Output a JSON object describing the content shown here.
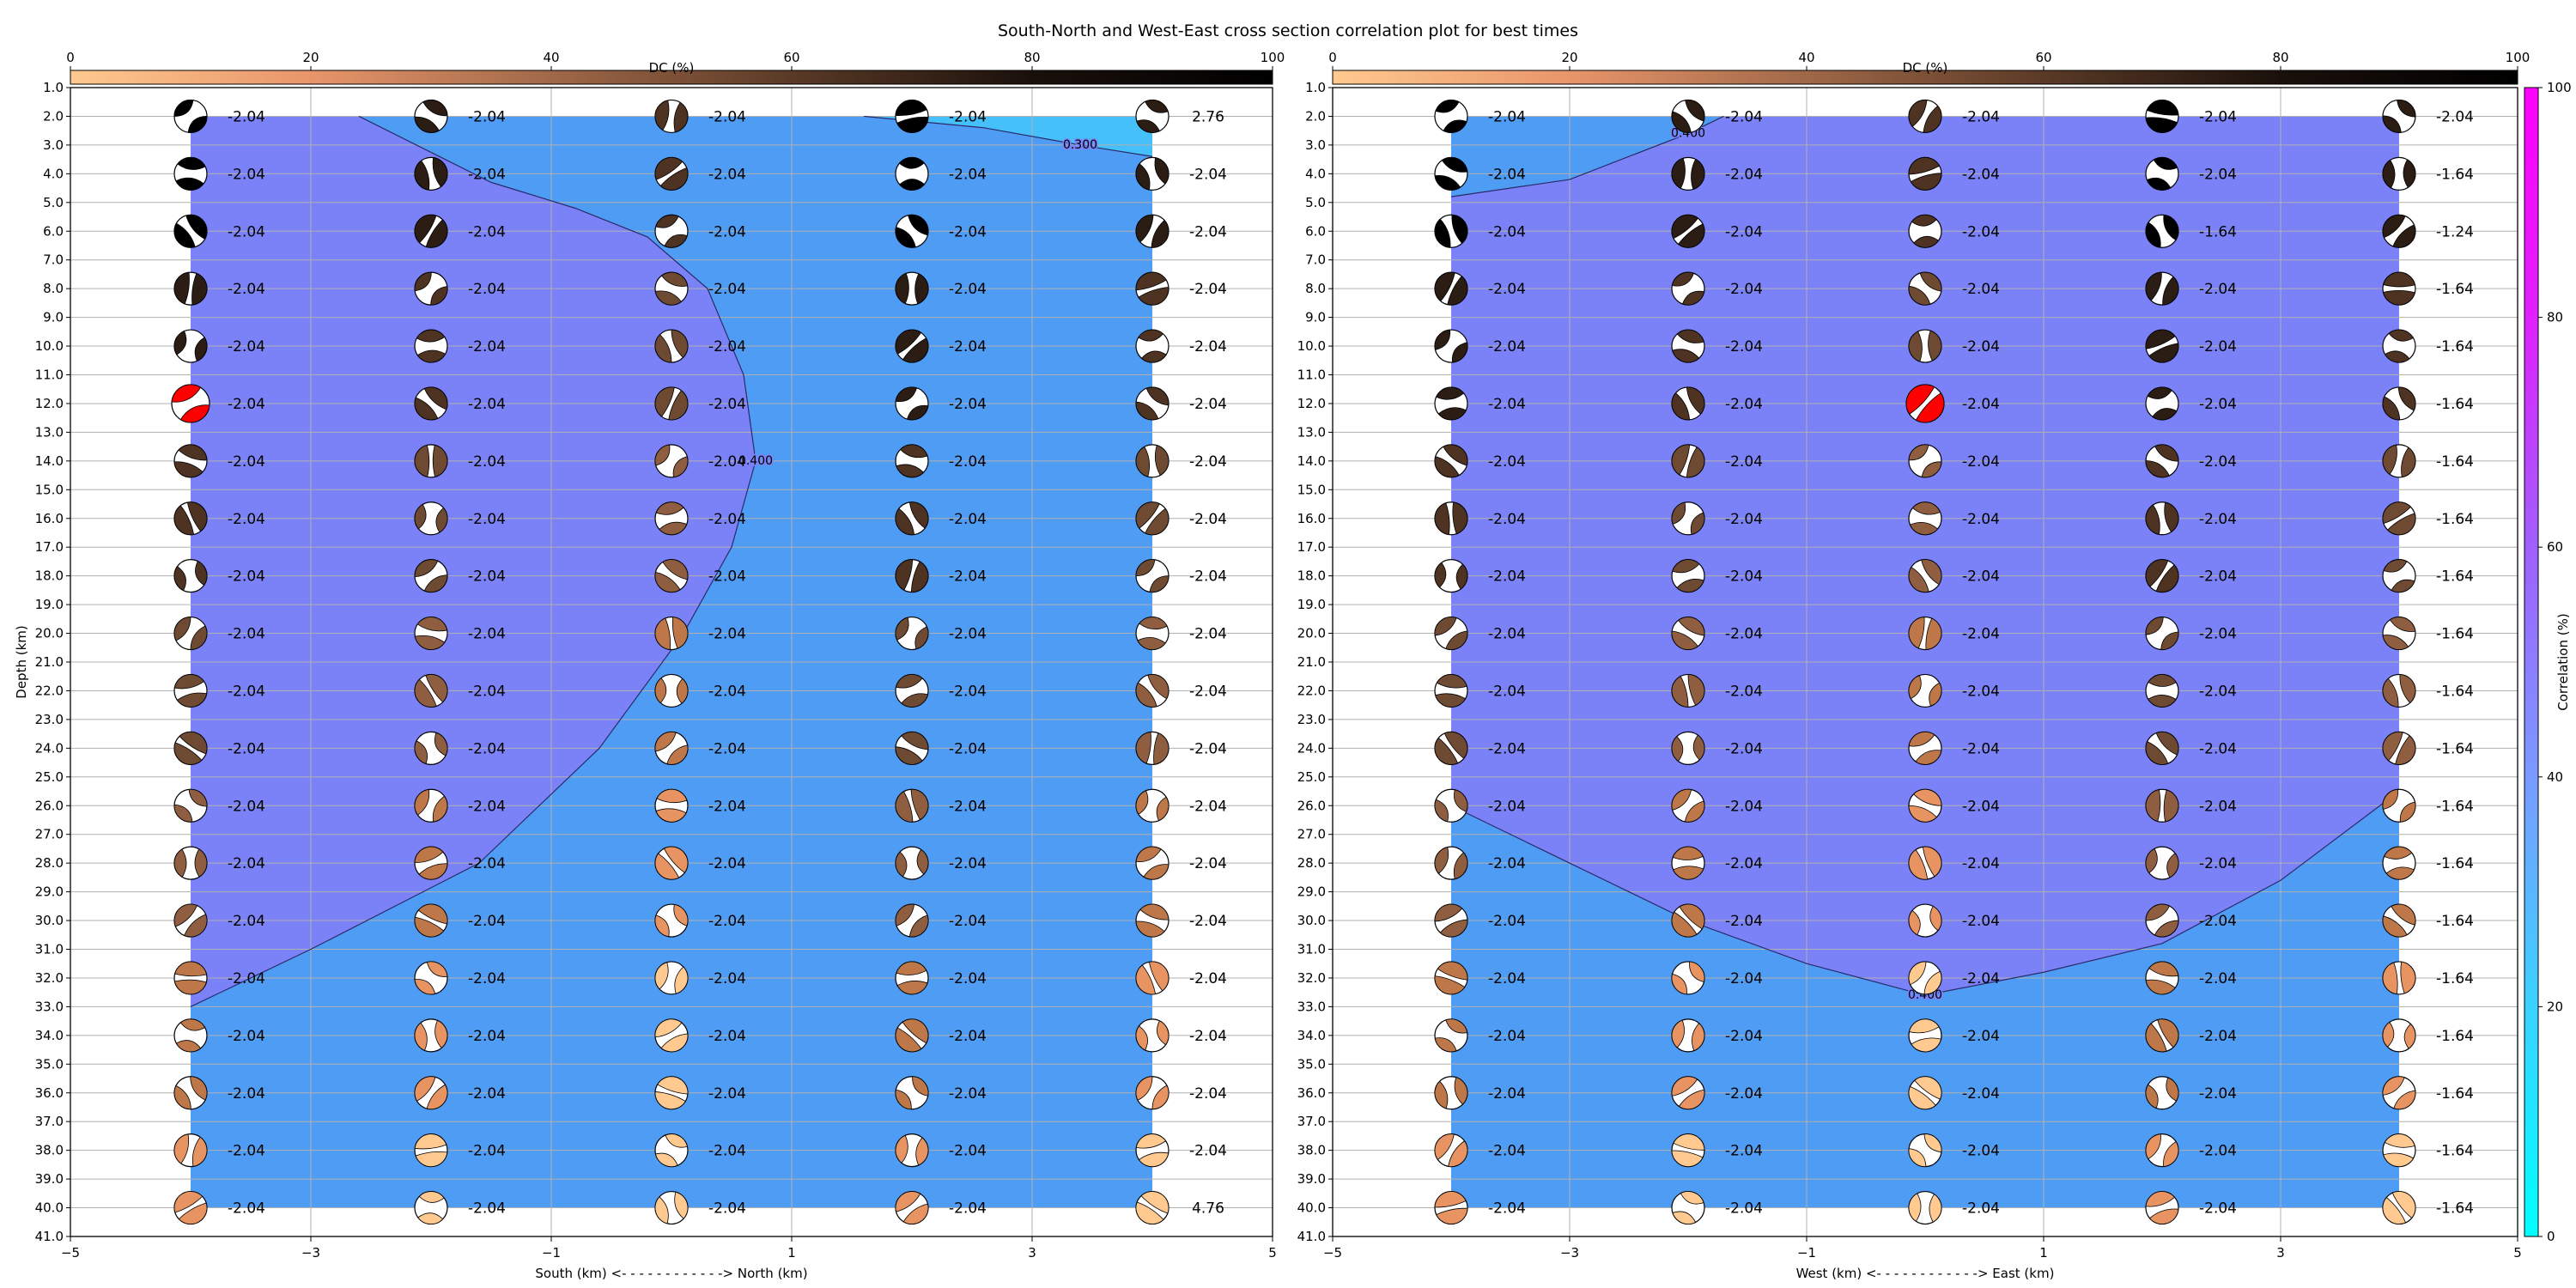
{
  "title": "South-North and West-East cross section correlation plot for best times",
  "colors": {
    "grid": "#b0b0b0",
    "ball_outline": "#000000",
    "highlight": "#ff0000"
  },
  "dc_colorbar": {
    "label": "DC (%)",
    "ticks": [
      "0",
      "20",
      "40",
      "60",
      "80",
      "100"
    ],
    "stops": [
      "#ffc98f",
      "#e8956a",
      "#a06848",
      "#5a3a26",
      "#1a100b",
      "#000000"
    ]
  },
  "corr_colorbar": {
    "label": "Correlation (%)",
    "ticks": [
      "0",
      "20",
      "40",
      "60",
      "80",
      "100"
    ],
    "stops": [
      "#00ffff",
      "#3ad2ff",
      "#7a9bff",
      "#a060ff",
      "#e020ff",
      "#ff00ff"
    ]
  },
  "depth_ticks": [
    "1.0",
    "2.0",
    "3.0",
    "4.0",
    "5.0",
    "6.0",
    "7.0",
    "8.0",
    "9.0",
    "10.0",
    "11.0",
    "12.0",
    "13.0",
    "14.0",
    "15.0",
    "16.0",
    "17.0",
    "18.0",
    "19.0",
    "20.0",
    "21.0",
    "22.0",
    "23.0",
    "24.0",
    "25.0",
    "26.0",
    "27.0",
    "28.0",
    "29.0",
    "30.0",
    "31.0",
    "32.0",
    "33.0",
    "34.0",
    "35.0",
    "36.0",
    "37.0",
    "38.0",
    "39.0",
    "40.0",
    "41.0"
  ],
  "chart_data": [
    {
      "type": "heatmap",
      "xlabel": "South (km) <- - - - - - - - - - - -> North (km)",
      "ylabel": "Depth (km)",
      "xticks": [
        "−5",
        "−3",
        "−1",
        "1",
        "3",
        "5"
      ],
      "xlim": [
        -5,
        5
      ],
      "ylim": [
        41,
        1
      ],
      "x": [
        -4,
        -2,
        0,
        2,
        4
      ],
      "depths": [
        2,
        4,
        6,
        8,
        10,
        12,
        14,
        16,
        18,
        20,
        22,
        24,
        26,
        28,
        30,
        32,
        34,
        36,
        38,
        40
      ],
      "contours": [
        {
          "label": "0.400",
          "points": [
            [
              -2.6,
              2
            ],
            [
              -1.5,
              4.3
            ],
            [
              -0.8,
              5.2
            ],
            [
              -0.2,
              6.2
            ],
            [
              0.3,
              8
            ],
            [
              0.6,
              11
            ],
            [
              0.7,
              14
            ],
            [
              0.5,
              17
            ],
            [
              0.1,
              20
            ],
            [
              -0.6,
              24
            ],
            [
              -1.6,
              28
            ],
            [
              -3,
              31
            ],
            [
              -4,
              33
            ]
          ]
        },
        {
          "label": "0.300",
          "points": [
            [
              1.6,
              2
            ],
            [
              2.6,
              2.4
            ],
            [
              3.4,
              3
            ],
            [
              4,
              3.4
            ]
          ]
        }
      ],
      "highlight": {
        "x": -4,
        "depth": 12
      },
      "values": [
        [
          "-2.04",
          "-2.04",
          "-2.04",
          "-2.04",
          "2.76"
        ],
        [
          "-2.04",
          "-2.04",
          "-2.04",
          "-2.04",
          "-2.04"
        ],
        [
          "-2.04",
          "-2.04",
          "-2.04",
          "-2.04",
          "-2.04"
        ],
        [
          "-2.04",
          "-2.04",
          "-2.04",
          "-2.04",
          "-2.04"
        ],
        [
          "-2.04",
          "-2.04",
          "-2.04",
          "-2.04",
          "-2.04"
        ],
        [
          "-2.04",
          "-2.04",
          "-2.04",
          "-2.04",
          "-2.04"
        ],
        [
          "-2.04",
          "-2.04",
          "-2.04",
          "-2.04",
          "-2.04"
        ],
        [
          "-2.04",
          "-2.04",
          "-2.04",
          "-2.04",
          "-2.04"
        ],
        [
          "-2.04",
          "-2.04",
          "-2.04",
          "-2.04",
          "-2.04"
        ],
        [
          "-2.04",
          "-2.04",
          "-2.04",
          "-2.04",
          "-2.04"
        ],
        [
          "-2.04",
          "-2.04",
          "-2.04",
          "-2.04",
          "-2.04"
        ],
        [
          "-2.04",
          "-2.04",
          "-2.04",
          "-2.04",
          "-2.04"
        ],
        [
          "-2.04",
          "-2.04",
          "-2.04",
          "-2.04",
          "-2.04"
        ],
        [
          "-2.04",
          "-2.04",
          "-2.04",
          "-2.04",
          "-2.04"
        ],
        [
          "-2.04",
          "-2.04",
          "-2.04",
          "-2.04",
          "-2.04"
        ],
        [
          "-2.04",
          "-2.04",
          "-2.04",
          "-2.04",
          "-2.04"
        ],
        [
          "-2.04",
          "-2.04",
          "-2.04",
          "-2.04",
          "-2.04"
        ],
        [
          "-2.04",
          "-2.04",
          "-2.04",
          "-2.04",
          "-2.04"
        ],
        [
          "-2.04",
          "-2.04",
          "-2.04",
          "-2.04",
          "-2.04"
        ],
        [
          "-2.04",
          "-2.04",
          "-2.04",
          "-2.04",
          "4.76"
        ]
      ]
    },
    {
      "type": "heatmap",
      "xlabel": "West (km) <- - - - - - - - - - - -> East (km)",
      "ylabel": "",
      "xticks": [
        "−5",
        "−3",
        "−1",
        "1",
        "3",
        "5"
      ],
      "xlim": [
        -5,
        5
      ],
      "ylim": [
        41,
        1
      ],
      "x": [
        -4,
        -2,
        0,
        2,
        4
      ],
      "depths": [
        2,
        4,
        6,
        8,
        10,
        12,
        14,
        16,
        18,
        20,
        22,
        24,
        26,
        28,
        30,
        32,
        34,
        36,
        38,
        40
      ],
      "contours": [
        {
          "label": "0.400",
          "points": [
            [
              -4,
              4.8
            ],
            [
              -3,
              4.2
            ],
            [
              -2,
              2.6
            ],
            [
              -1.7,
              2
            ]
          ]
        },
        {
          "label": "0.400",
          "points": [
            [
              -4,
              26
            ],
            [
              -3,
              28
            ],
            [
              -2,
              30
            ],
            [
              -1,
              31.5
            ],
            [
              0,
              32.6
            ],
            [
              1,
              31.8
            ],
            [
              2,
              30.8
            ],
            [
              3,
              28.6
            ],
            [
              4,
              25.5
            ]
          ]
        }
      ],
      "highlight": {
        "x": 0,
        "depth": 12
      },
      "values": [
        [
          "-2.04",
          "-2.04",
          "-2.04",
          "-2.04",
          "-2.04"
        ],
        [
          "-2.04",
          "-2.04",
          "-2.04",
          "-2.04",
          "-1.64"
        ],
        [
          "-2.04",
          "-2.04",
          "-2.04",
          "-1.64",
          "-1.24"
        ],
        [
          "-2.04",
          "-2.04",
          "-2.04",
          "-2.04",
          "-1.64"
        ],
        [
          "-2.04",
          "-2.04",
          "-2.04",
          "-2.04",
          "-1.64"
        ],
        [
          "-2.04",
          "-2.04",
          "-2.04",
          "-2.04",
          "-1.64"
        ],
        [
          "-2.04",
          "-2.04",
          "-2.04",
          "-2.04",
          "-1.64"
        ],
        [
          "-2.04",
          "-2.04",
          "-2.04",
          "-2.04",
          "-1.64"
        ],
        [
          "-2.04",
          "-2.04",
          "-2.04",
          "-2.04",
          "-1.64"
        ],
        [
          "-2.04",
          "-2.04",
          "-2.04",
          "-2.04",
          "-1.64"
        ],
        [
          "-2.04",
          "-2.04",
          "-2.04",
          "-2.04",
          "-1.64"
        ],
        [
          "-2.04",
          "-2.04",
          "-2.04",
          "-2.04",
          "-1.64"
        ],
        [
          "-2.04",
          "-2.04",
          "-2.04",
          "-2.04",
          "-1.64"
        ],
        [
          "-2.04",
          "-2.04",
          "-2.04",
          "-2.04",
          "-1.64"
        ],
        [
          "-2.04",
          "-2.04",
          "-2.04",
          "-2.04",
          "-1.64"
        ],
        [
          "-2.04",
          "-2.04",
          "-2.04",
          "-2.04",
          "-1.64"
        ],
        [
          "-2.04",
          "-2.04",
          "-2.04",
          "-2.04",
          "-1.64"
        ],
        [
          "-2.04",
          "-2.04",
          "-2.04",
          "-2.04",
          "-1.64"
        ],
        [
          "-2.04",
          "-2.04",
          "-2.04",
          "-2.04",
          "-1.64"
        ],
        [
          "-2.04",
          "-2.04",
          "-2.04",
          "-2.04",
          "-1.64"
        ]
      ]
    }
  ]
}
